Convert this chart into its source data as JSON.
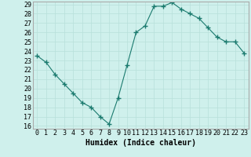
{
  "x": [
    0,
    1,
    2,
    3,
    4,
    5,
    6,
    7,
    8,
    9,
    10,
    11,
    12,
    13,
    14,
    15,
    16,
    17,
    18,
    19,
    20,
    21,
    22,
    23
  ],
  "y": [
    23.5,
    22.8,
    21.5,
    20.5,
    19.5,
    18.5,
    18.0,
    17.0,
    16.2,
    19.0,
    22.5,
    26.0,
    26.7,
    28.8,
    28.8,
    29.2,
    28.5,
    28.0,
    27.5,
    26.5,
    25.5,
    25.0,
    25.0,
    23.8
  ],
  "xlabel": "Humidex (Indice chaleur)",
  "ylim_min": 16,
  "ylim_max": 29,
  "xlim_min": 0,
  "xlim_max": 23,
  "yticks": [
    16,
    17,
    18,
    19,
    20,
    21,
    22,
    23,
    24,
    25,
    26,
    27,
    28,
    29
  ],
  "xticks": [
    0,
    1,
    2,
    3,
    4,
    5,
    6,
    7,
    8,
    9,
    10,
    11,
    12,
    13,
    14,
    15,
    16,
    17,
    18,
    19,
    20,
    21,
    22,
    23
  ],
  "line_color": "#1a7a6e",
  "marker": "+",
  "marker_size": 4.0,
  "bg_color": "#cff0ec",
  "grid_color": "#b8e0da",
  "border_color": "#aaaaaa",
  "xlabel_fontsize": 7,
  "tick_fontsize": 6
}
